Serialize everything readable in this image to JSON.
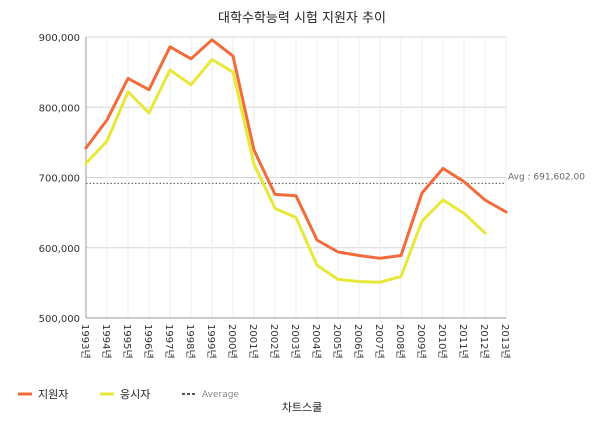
{
  "chart_data": {
    "type": "line",
    "title": "대학수학능력 시험 지원자 추이",
    "categories": [
      "1993년",
      "1994년",
      "1995년",
      "1996년",
      "1997년",
      "1998년",
      "1999년",
      "2000년",
      "2001년",
      "2002년",
      "2003년",
      "2004년",
      "2005년",
      "2006년",
      "2007년",
      "2008년",
      "2009년",
      "2010년",
      "2011년",
      "2012년",
      "2013년"
    ],
    "series": [
      {
        "name": "지원자",
        "color": "#f26b3a",
        "values": [
          742000,
          782000,
          841000,
          825000,
          886000,
          869000,
          896000,
          873000,
          739000,
          676000,
          674000,
          611000,
          594000,
          589000,
          585000,
          589000,
          678000,
          713000,
          694000,
          668000,
          651000
        ]
      },
      {
        "name": "응시자",
        "color": "#e8e83a",
        "values": [
          720000,
          752000,
          822000,
          792000,
          853000,
          832000,
          868000,
          850000,
          719000,
          656000,
          643000,
          575000,
          555000,
          552000,
          551000,
          559000,
          638000,
          668000,
          649000,
          621000,
          null
        ]
      }
    ],
    "average": {
      "value": 691602,
      "label": "Avg : 691,602.00",
      "legend_label": "Average",
      "color": "#555555"
    },
    "yticks": [
      "900,000",
      "800,000",
      "700,000",
      "600,000",
      "500,000"
    ],
    "ylim": [
      500000,
      900000
    ],
    "grid": true,
    "legend_position": "bottom-left",
    "credit": "차트스쿨"
  }
}
